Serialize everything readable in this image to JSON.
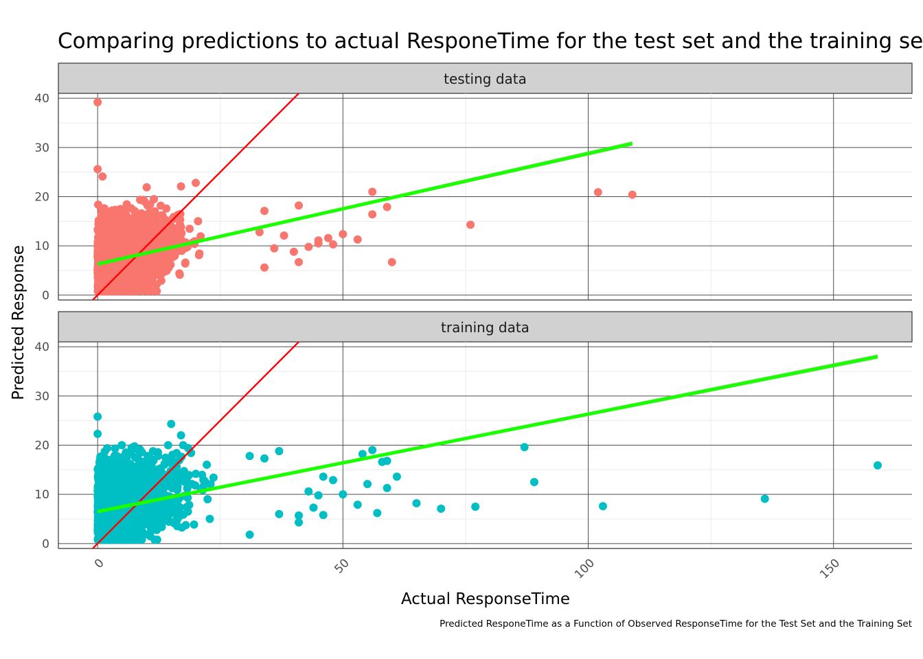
{
  "chart_data": {
    "type": "scatter",
    "title": "Comparing predictions to actual ResponeTime for the test set and the training set",
    "xlabel": "Actual ResponseTime",
    "ylabel": "Predicted Response",
    "caption": "Predicted ResponeTime as a Function of Observed ResponseTime for the Test Set and the Training Set",
    "xlim": [
      -8,
      166
    ],
    "ylim": [
      -1,
      41
    ],
    "x_ticks": [
      0,
      50,
      100,
      150
    ],
    "y_ticks": [
      0,
      10,
      20,
      30,
      40
    ],
    "grid": true,
    "identity_line_color": "#ff0000",
    "fit_line_color": "#1aff00",
    "panels": [
      {
        "label": "testing data",
        "color": "#f8766d",
        "fit": {
          "x": [
            0,
            109
          ],
          "y": [
            6.3,
            30.8
          ]
        },
        "outliers": [
          {
            "x": 0,
            "y": 39.2
          },
          {
            "x": 0,
            "y": 25.6
          },
          {
            "x": 1,
            "y": 24.1
          },
          {
            "x": 10,
            "y": 21.9
          },
          {
            "x": 17,
            "y": 22.1
          },
          {
            "x": 20,
            "y": 22.8
          },
          {
            "x": 41,
            "y": 18.2
          },
          {
            "x": 56,
            "y": 21.0
          },
          {
            "x": 59,
            "y": 17.9
          },
          {
            "x": 56,
            "y": 16.4
          },
          {
            "x": 76,
            "y": 14.3
          },
          {
            "x": 102,
            "y": 20.9
          },
          {
            "x": 109,
            "y": 20.4
          },
          {
            "x": 53,
            "y": 11.3
          },
          {
            "x": 50,
            "y": 12.4
          },
          {
            "x": 60,
            "y": 6.7
          },
          {
            "x": 45,
            "y": 10.5
          },
          {
            "x": 47,
            "y": 11.6
          },
          {
            "x": 43,
            "y": 9.8
          },
          {
            "x": 45,
            "y": 11.1
          },
          {
            "x": 48,
            "y": 10.3
          },
          {
            "x": 41,
            "y": 6.7
          },
          {
            "x": 34,
            "y": 5.6
          },
          {
            "x": 40,
            "y": 8.8
          },
          {
            "x": 38,
            "y": 12.1
          },
          {
            "x": 36,
            "y": 9.5
          },
          {
            "x": 33,
            "y": 12.8
          },
          {
            "x": 6,
            "y": 1.5
          },
          {
            "x": 34,
            "y": 17.1
          }
        ],
        "cloud": {
          "x_max": 38,
          "y_base": 6.2,
          "slope": 0.29,
          "y_min": 0.8,
          "y_max": 19.5,
          "spread": 4.2
        }
      },
      {
        "label": "training data",
        "color": "#00bfc4",
        "fit": {
          "x": [
            0,
            159
          ],
          "y": [
            6.5,
            38.0
          ]
        },
        "outliers": [
          {
            "x": 0,
            "y": 25.8
          },
          {
            "x": 0,
            "y": 22.3
          },
          {
            "x": 15,
            "y": 24.3
          },
          {
            "x": 17,
            "y": 22.0
          },
          {
            "x": 56,
            "y": 19.0
          },
          {
            "x": 54,
            "y": 18.2
          },
          {
            "x": 58,
            "y": 16.6
          },
          {
            "x": 59,
            "y": 16.8
          },
          {
            "x": 61,
            "y": 13.6
          },
          {
            "x": 59,
            "y": 11.3
          },
          {
            "x": 55,
            "y": 12.1
          },
          {
            "x": 53,
            "y": 7.9
          },
          {
            "x": 57,
            "y": 6.2
          },
          {
            "x": 65,
            "y": 8.2
          },
          {
            "x": 70,
            "y": 7.1
          },
          {
            "x": 77,
            "y": 7.5
          },
          {
            "x": 87,
            "y": 19.6
          },
          {
            "x": 89,
            "y": 12.5
          },
          {
            "x": 103,
            "y": 7.6
          },
          {
            "x": 136,
            "y": 9.1
          },
          {
            "x": 159,
            "y": 15.9
          },
          {
            "x": 48,
            "y": 12.9
          },
          {
            "x": 46,
            "y": 13.6
          },
          {
            "x": 50,
            "y": 10.0
          },
          {
            "x": 44,
            "y": 7.3
          },
          {
            "x": 46,
            "y": 5.8
          },
          {
            "x": 41,
            "y": 5.7
          },
          {
            "x": 41,
            "y": 4.3
          },
          {
            "x": 31,
            "y": 1.8
          },
          {
            "x": 9,
            "y": 0.8
          },
          {
            "x": 37,
            "y": 18.8
          },
          {
            "x": 31,
            "y": 17.8
          },
          {
            "x": 34,
            "y": 17.3
          },
          {
            "x": 37,
            "y": 6.0
          },
          {
            "x": 43,
            "y": 10.6
          },
          {
            "x": 45,
            "y": 9.8
          }
        ],
        "cloud": {
          "x_max": 40,
          "y_base": 6.6,
          "slope": 0.28,
          "y_min": 0.8,
          "y_max": 20.0,
          "spread": 4.4
        }
      }
    ]
  }
}
